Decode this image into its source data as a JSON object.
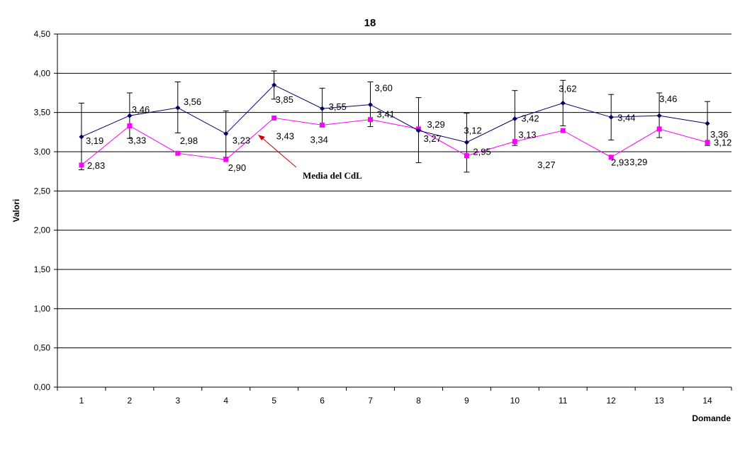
{
  "chart_data": {
    "type": "line",
    "title": "18",
    "xlabel": "Domande",
    "ylabel": "Valori",
    "categories": [
      "1",
      "2",
      "3",
      "4",
      "5",
      "6",
      "7",
      "8",
      "9",
      "10",
      "11",
      "12",
      "13",
      "14"
    ],
    "ylim": [
      0,
      4.5
    ],
    "yticks": [
      0,
      0.5,
      1,
      1.5,
      2,
      2.5,
      3,
      3.5,
      4,
      4.5
    ],
    "ytick_labels": [
      "0,00",
      "0,50",
      "1,00",
      "1,50",
      "2,00",
      "2,50",
      "3,00",
      "3,50",
      "4,00",
      "4,50"
    ],
    "grid": true,
    "legend": "none",
    "series": [
      {
        "color": "#000066",
        "marker": "diamond",
        "values": [
          3.19,
          3.46,
          3.56,
          3.23,
          3.85,
          3.55,
          3.6,
          3.27,
          3.12,
          3.42,
          3.62,
          3.44,
          3.46,
          3.36
        ],
        "labels": [
          "3,19",
          "3,46",
          "3,56",
          "3,23",
          "3,85",
          "3,55",
          "3,60",
          "3,27",
          "3,12",
          "3,42",
          "3,62",
          "3,44",
          "3,46",
          "3,36"
        ],
        "error_low": [
          2.77,
          3.17,
          3.24,
          2.93,
          3.67,
          3.32,
          3.32,
          2.86,
          2.74,
          3.08,
          3.33,
          3.15,
          3.18,
          3.08
        ],
        "error_high": [
          3.62,
          3.75,
          3.89,
          3.52,
          4.03,
          3.81,
          3.89,
          3.69,
          3.49,
          3.78,
          3.91,
          3.73,
          3.75,
          3.64
        ]
      },
      {
        "name": "Media del CdL",
        "color": "#ff00ff",
        "marker": "square",
        "values": [
          2.83,
          3.33,
          2.98,
          2.9,
          3.43,
          3.34,
          3.41,
          3.29,
          2.95,
          3.13,
          3.27,
          2.93,
          3.29,
          3.12
        ],
        "labels": [
          "2,83",
          "3,33",
          "2,98",
          "2,90",
          "3,43",
          "3,34",
          "3,41",
          "3,29",
          "2,95",
          "3,13",
          "3,27",
          "2,93",
          "3,29",
          "3,12"
        ]
      }
    ],
    "annotations": [
      {
        "text": "Media del CdL",
        "arrow_color": "#cc0000"
      }
    ]
  }
}
